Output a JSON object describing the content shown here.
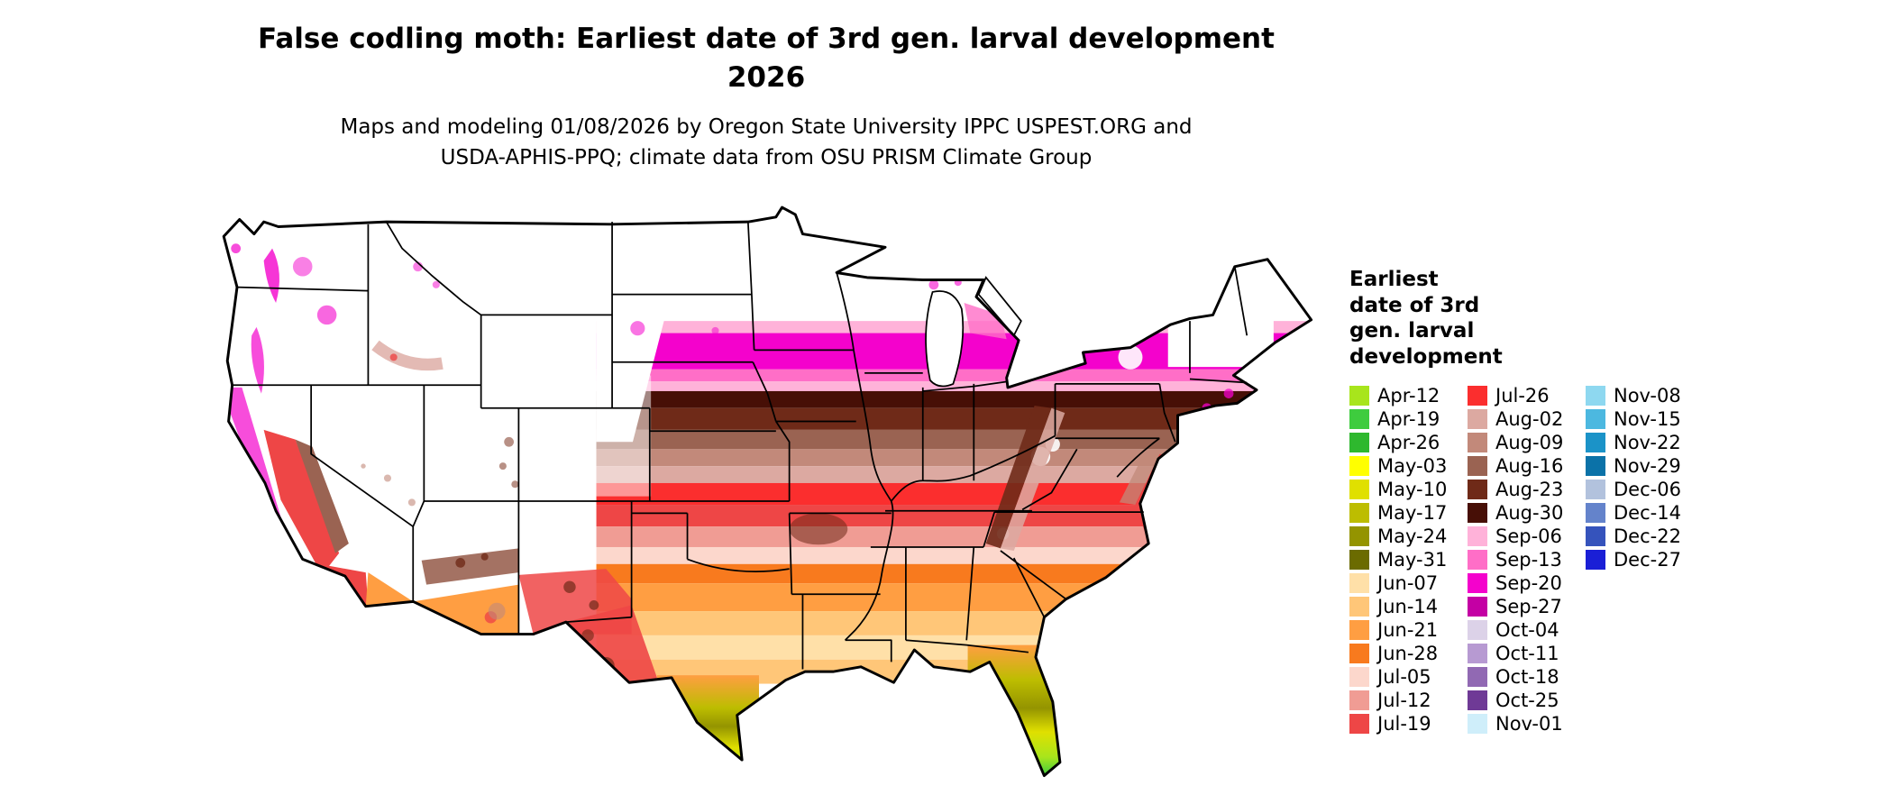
{
  "header": {
    "title_line1": "False codling moth: Earliest date of 3rd gen. larval development",
    "title_line2": "2026",
    "subtitle_line1": "Maps and modeling 01/08/2026 by Oregon State University IPPC USPEST.ORG and",
    "subtitle_line2": "USDA-APHIS-PPQ; climate data from OSU PRISM Climate Group"
  },
  "map": {
    "region": "Contiguous United States",
    "kind": "Choropleth raster map with state boundaries shaded by earliest date of 3rd generation larval development"
  },
  "legend": {
    "title_lines": [
      "Earliest",
      "date of 3rd",
      "gen. larval",
      "development"
    ],
    "columns": [
      [
        {
          "label": "Apr-12",
          "color": "#a8e51c"
        },
        {
          "label": "Apr-19",
          "color": "#3ecc3e"
        },
        {
          "label": "Apr-26",
          "color": "#2eb82e"
        },
        {
          "label": "May-03",
          "color": "#ffff00"
        },
        {
          "label": "May-10",
          "color": "#e0e000"
        },
        {
          "label": "May-17",
          "color": "#bdbd00"
        },
        {
          "label": "May-24",
          "color": "#949400"
        },
        {
          "label": "May-31",
          "color": "#6b6b00"
        },
        {
          "label": "Jun-07",
          "color": "#ffe0a8"
        },
        {
          "label": "Jun-14",
          "color": "#ffc678"
        },
        {
          "label": "Jun-21",
          "color": "#ff9e42"
        },
        {
          "label": "Jun-28",
          "color": "#f87a1e"
        },
        {
          "label": "Jul-05",
          "color": "#fcd7cc"
        },
        {
          "label": "Jul-12",
          "color": "#f09c94"
        },
        {
          "label": "Jul-19",
          "color": "#ee4646"
        }
      ],
      [
        {
          "label": "Jul-26",
          "color": "#fb2e2e"
        },
        {
          "label": "Aug-02",
          "color": "#dca9a1"
        },
        {
          "label": "Aug-09",
          "color": "#c2897a"
        },
        {
          "label": "Aug-16",
          "color": "#9a6352"
        },
        {
          "label": "Aug-23",
          "color": "#6f2a18"
        },
        {
          "label": "Aug-30",
          "color": "#470f06"
        },
        {
          "label": "Sep-06",
          "color": "#ffb2d9"
        },
        {
          "label": "Sep-13",
          "color": "#ff6ec7"
        },
        {
          "label": "Sep-20",
          "color": "#f402cc"
        },
        {
          "label": "Sep-27",
          "color": "#c400a4"
        },
        {
          "label": "Oct-04",
          "color": "#dcd2e8"
        },
        {
          "label": "Oct-11",
          "color": "#b79ad2"
        },
        {
          "label": "Oct-18",
          "color": "#9169b3"
        },
        {
          "label": "Oct-25",
          "color": "#6f3a96"
        },
        {
          "label": "Nov-01",
          "color": "#cfeefa"
        }
      ],
      [
        {
          "label": "Nov-08",
          "color": "#8ed8f0"
        },
        {
          "label": "Nov-15",
          "color": "#4cb8e0"
        },
        {
          "label": "Nov-22",
          "color": "#1b93c8"
        },
        {
          "label": "Nov-29",
          "color": "#0b72a8"
        },
        {
          "label": "Dec-06",
          "color": "#b2c2dd"
        },
        {
          "label": "Dec-14",
          "color": "#6483cb"
        },
        {
          "label": "Dec-22",
          "color": "#3553bc"
        },
        {
          "label": "Dec-27",
          "color": "#1a1fd6"
        }
      ]
    ]
  }
}
